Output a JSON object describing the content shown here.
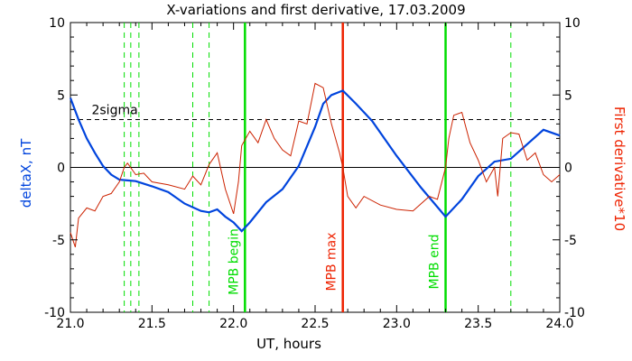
{
  "chart_data": {
    "type": "line",
    "title": "X-variations and first derivative, 17.03.2009",
    "xlabel": "UT, hours",
    "ylabel_left": "deltaX, nT",
    "ylabel_right": "First derivative*10",
    "xlim": [
      21.0,
      24.0
    ],
    "ylim": [
      -10,
      10
    ],
    "x_ticks": [
      21.0,
      21.5,
      22.0,
      22.5,
      23.0,
      23.5,
      24.0
    ],
    "x_tick_labels": [
      "21.0",
      "21.5",
      "22.0",
      "22.5",
      "23.0",
      "23.5",
      "24.0"
    ],
    "y_ticks": [
      -10,
      -5,
      0,
      5,
      10
    ],
    "y_tick_labels": [
      "-10",
      "-5",
      "0",
      "5",
      "10"
    ],
    "colors": {
      "deltaX": "#0044dd",
      "derivative": "#cc2200",
      "threshold": "#000000",
      "zero": "#000000",
      "green_marker": "#00dd00",
      "red_marker": "#ee2200",
      "dashed_green": "#00dd00"
    },
    "series": [
      {
        "name": "deltaX, nT",
        "color": "#0044dd",
        "x": [
          21.0,
          21.05,
          21.1,
          21.15,
          21.2,
          21.25,
          21.3,
          21.35,
          21.4,
          21.5,
          21.6,
          21.7,
          21.8,
          21.85,
          21.9,
          21.95,
          22.0,
          22.05,
          22.1,
          22.2,
          22.3,
          22.4,
          22.5,
          22.55,
          22.6,
          22.67,
          22.75,
          22.85,
          23.0,
          23.15,
          23.3,
          23.4,
          23.5,
          23.6,
          23.7,
          23.8,
          23.9,
          24.0
        ],
        "y": [
          4.8,
          3.3,
          2.0,
          1.0,
          0.1,
          -0.5,
          -0.85,
          -0.9,
          -0.95,
          -1.3,
          -1.7,
          -2.5,
          -3.0,
          -3.1,
          -2.9,
          -3.4,
          -3.8,
          -4.4,
          -3.8,
          -2.4,
          -1.5,
          0.1,
          2.8,
          4.4,
          5.0,
          5.3,
          4.4,
          3.2,
          0.8,
          -1.4,
          -3.4,
          -2.2,
          -0.6,
          0.4,
          0.6,
          1.6,
          2.6,
          2.2
        ]
      },
      {
        "name": "First derivative*10",
        "color": "#cc2200",
        "x": [
          21.0,
          21.03,
          21.05,
          21.1,
          21.15,
          21.2,
          21.25,
          21.3,
          21.33,
          21.35,
          21.4,
          21.45,
          21.5,
          21.6,
          21.7,
          21.75,
          21.8,
          21.85,
          21.9,
          21.95,
          22.0,
          22.03,
          22.05,
          22.1,
          22.15,
          22.2,
          22.25,
          22.3,
          22.35,
          22.4,
          22.45,
          22.5,
          22.55,
          22.6,
          22.65,
          22.67,
          22.7,
          22.75,
          22.8,
          22.9,
          23.0,
          23.1,
          23.2,
          23.25,
          23.3,
          23.32,
          23.35,
          23.4,
          23.45,
          23.5,
          23.55,
          23.6,
          23.62,
          23.65,
          23.7,
          23.75,
          23.8,
          23.85,
          23.9,
          23.95,
          24.0
        ],
        "y": [
          -4.5,
          -5.5,
          -3.5,
          -2.8,
          -3.0,
          -2.0,
          -1.8,
          -1.0,
          0.0,
          0.3,
          -0.5,
          -0.4,
          -1.0,
          -1.2,
          -1.5,
          -0.6,
          -1.2,
          0.2,
          1.0,
          -1.5,
          -3.2,
          -1.0,
          1.5,
          2.5,
          1.7,
          3.3,
          2.0,
          1.2,
          0.8,
          3.2,
          3.0,
          5.8,
          5.5,
          3.0,
          1.0,
          0.0,
          -2.0,
          -2.8,
          -2.0,
          -2.6,
          -2.9,
          -3.0,
          -2.0,
          -2.2,
          0.0,
          2.0,
          3.6,
          3.8,
          1.7,
          0.5,
          -1.0,
          0.0,
          -2.0,
          2.0,
          2.4,
          2.3,
          0.5,
          1.0,
          -0.5,
          -1.0,
          -0.5
        ]
      }
    ],
    "threshold": {
      "label": "2sigma",
      "y": 3.3
    },
    "zero_line": 0,
    "dashed_markers_x": [
      21.33,
      21.37,
      21.42,
      21.75,
      21.85,
      23.7
    ],
    "event_lines": [
      {
        "label": "MPB begin",
        "x": 22.07,
        "color": "#00dd00"
      },
      {
        "label": "MPB max",
        "x": 22.67,
        "color": "#ee2200"
      },
      {
        "label": "MPB end",
        "x": 23.3,
        "color": "#00dd00"
      }
    ]
  }
}
